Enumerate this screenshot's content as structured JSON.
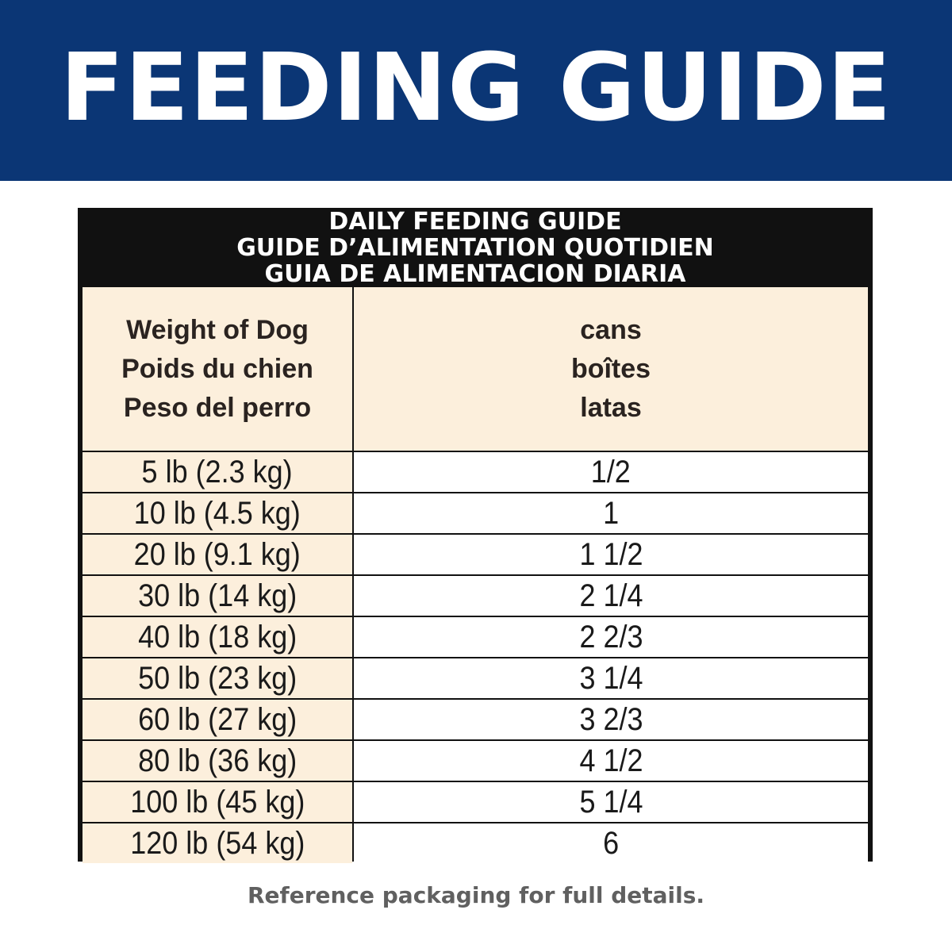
{
  "banner": {
    "title": "FEEDING GUIDE",
    "background_color": "#0b3675"
  },
  "table": {
    "heading_lines": [
      "DAILY FEEDING GUIDE",
      "GUIDE D’ALIMENTATION QUOTIDIEN",
      "GUIA DE ALIMENTACION DIARIA"
    ],
    "column_headers": {
      "weight": [
        "Weight of Dog",
        "Poids du chien",
        "Peso del perro"
      ],
      "amount": [
        "cans",
        "boîtes",
        "latas"
      ]
    },
    "rows": [
      {
        "weight": "5 lb (2.3 kg)",
        "amount": "1/2"
      },
      {
        "weight": "10 lb (4.5 kg)",
        "amount": "1"
      },
      {
        "weight": "20 lb (9.1 kg)",
        "amount": "1 1/2"
      },
      {
        "weight": "30 lb (14 kg)",
        "amount": "2 1/4"
      },
      {
        "weight": "40 lb (18 kg)",
        "amount": "2 2/3"
      },
      {
        "weight": "50 lb (23 kg)",
        "amount": "3 1/4"
      },
      {
        "weight": "60 lb (27 kg)",
        "amount": "3 2/3"
      },
      {
        "weight": "80 lb (36 kg)",
        "amount": "4 1/2"
      },
      {
        "weight": "100 lb (45 kg)",
        "amount": "5 1/4"
      },
      {
        "weight": "120 lb (54 kg)",
        "amount": "6"
      }
    ],
    "header_fill_color": "#fcefdc"
  },
  "footnote": "Reference packaging for full details."
}
